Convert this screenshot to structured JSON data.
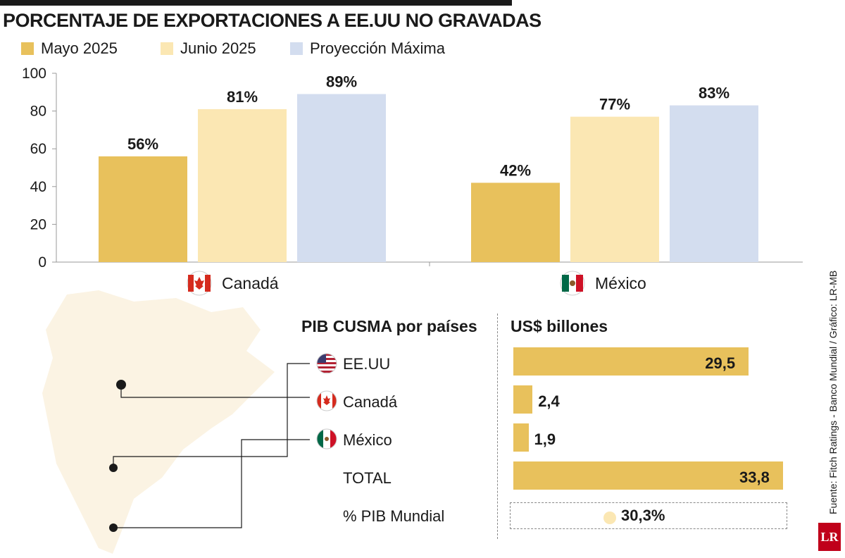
{
  "title": "PORCENTAJE DE EXPORTACIONES A EE.UU NO GRAVADAS",
  "legend": [
    {
      "label": "Mayo 2025",
      "color": "#e8c15c"
    },
    {
      "label": "Junio 2025",
      "color": "#fbe7b3"
    },
    {
      "label": "Proyección Máxima",
      "color": "#d3ddef"
    }
  ],
  "chart_data": [
    {
      "type": "bar",
      "title": "PORCENTAJE DE EXPORTACIONES A EE.UU NO GRAVADAS",
      "categories": [
        "Canadá",
        "México"
      ],
      "series": [
        {
          "name": "Mayo 2025",
          "values": [
            56,
            42
          ],
          "labels": [
            "56%",
            "42%"
          ]
        },
        {
          "name": "Junio 2025",
          "values": [
            81,
            77
          ],
          "labels": [
            "81%",
            "77%"
          ]
        },
        {
          "name": "Proyección Máxima",
          "values": [
            89,
            83
          ],
          "labels": [
            "89%",
            "83%"
          ]
        }
      ],
      "yticks": [
        "0",
        "20",
        "40",
        "60",
        "80",
        "100"
      ],
      "ylim": [
        0,
        100
      ],
      "xlabel": "",
      "ylabel": "",
      "grid": false,
      "legend_position": "top-left"
    },
    {
      "type": "bar",
      "title": "PIB CUSMA por países",
      "unit": "US$ billones",
      "categories": [
        "EE.UU",
        "Canadá",
        "México",
        "TOTAL"
      ],
      "values": [
        29.5,
        2.4,
        1.9,
        33.8
      ],
      "labels": [
        "29,5",
        "2,4",
        "1,9",
        "33,8"
      ],
      "extra": {
        "label": "% PIB Mundial",
        "value": 30.3,
        "value_label": "30,3%"
      }
    }
  ],
  "gdp_section": {
    "title": "PIB CUSMA por países",
    "unit_title": "US$ billones",
    "rows": [
      {
        "label": "EE.UU",
        "value": 29.5,
        "value_label": "29,5",
        "flag": "us-flag-icon"
      },
      {
        "label": "Canadá",
        "value": 2.4,
        "value_label": "2,4",
        "flag": "canada-flag-icon"
      },
      {
        "label": "México",
        "value": 1.9,
        "value_label": "1,9",
        "flag": "mexico-flag-icon"
      },
      {
        "label": "TOTAL",
        "value": 33.8,
        "value_label": "33,8",
        "flag": ""
      }
    ],
    "world_share": {
      "label": "% PIB Mundial",
      "value_label": "30,3%"
    }
  },
  "source": "Fuente: Fitch Ratings - Banco Mundial / Gráfico: LR-MB",
  "logo": "LR",
  "colors": {
    "may": "#e8c15c",
    "june": "#fbe7b3",
    "projection": "#d3ddef",
    "map": "#fbf3e3",
    "text": "#1a1a1a"
  }
}
